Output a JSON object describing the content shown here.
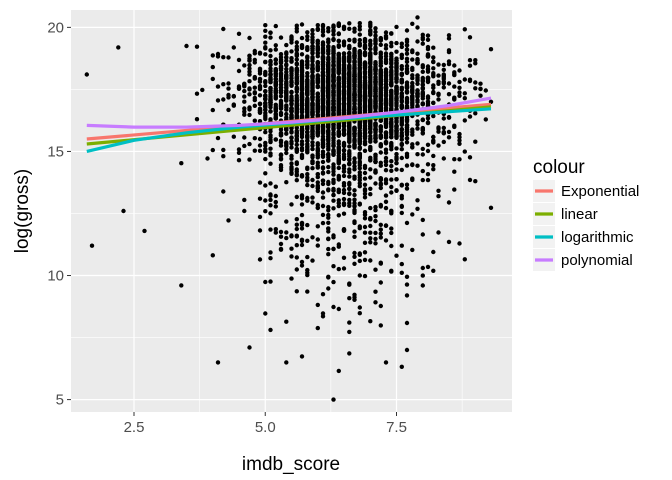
{
  "chart_data": {
    "type": "scatter",
    "xlabel": "imdb_score",
    "ylabel": "log(gross)",
    "xlim": [
      1.3,
      9.7
    ],
    "ylim": [
      4.5,
      20.7
    ],
    "x_ticks": [
      2.5,
      5.0,
      7.5
    ],
    "x_tick_labels": [
      "2.5",
      "5.0",
      "7.5"
    ],
    "y_ticks": [
      5,
      10,
      15,
      20
    ],
    "y_tick_labels": [
      "5",
      "10",
      "15",
      "20"
    ],
    "grid": true,
    "legend": {
      "title": "colour",
      "placement": "right",
      "entries": [
        {
          "label": "Exponential",
          "color": "#F8766D"
        },
        {
          "label": "linear",
          "color": "#7CAE00"
        },
        {
          "label": "logarithmic",
          "color": "#00BFC4"
        },
        {
          "label": "polynomial",
          "color": "#C77CFF"
        }
      ]
    },
    "points": {
      "color": "#000000",
      "count": 3800,
      "main_cluster": {
        "x_center": 6.5,
        "x_sd": 0.9,
        "y_center": 17.3,
        "y_sd": 1.2
      },
      "examples": [
        {
          "x": 1.6,
          "y": 18.1
        },
        {
          "x": 1.7,
          "y": 11.2
        },
        {
          "x": 2.3,
          "y": 12.6
        },
        {
          "x": 2.7,
          "y": 11.8
        },
        {
          "x": 3.4,
          "y": 9.6
        },
        {
          "x": 4.1,
          "y": 6.5
        },
        {
          "x": 4.7,
          "y": 7.1
        },
        {
          "x": 5.4,
          "y": 6.5
        },
        {
          "x": 6.3,
          "y": 5.0
        },
        {
          "x": 7.3,
          "y": 6.5
        },
        {
          "x": 7.7,
          "y": 7.0
        },
        {
          "x": 9.3,
          "y": 17.0
        },
        {
          "x": 8.9,
          "y": 19.6
        },
        {
          "x": 7.9,
          "y": 20.4
        }
      ]
    },
    "series": [
      {
        "name": "Exponential",
        "color": "#F8766D",
        "x": [
          1.6,
          9.3
        ],
        "y": [
          15.5,
          16.9
        ]
      },
      {
        "name": "linear",
        "color": "#7CAE00",
        "x": [
          1.6,
          9.3
        ],
        "y": [
          15.3,
          16.8
        ]
      },
      {
        "name": "logarithmic",
        "color": "#00BFC4",
        "x": [
          1.6,
          2.5,
          3.5,
          4.5,
          5.5,
          6.5,
          7.5,
          8.5,
          9.3
        ],
        "y": [
          15.0,
          15.45,
          15.75,
          15.98,
          16.15,
          16.32,
          16.47,
          16.6,
          16.72
        ]
      },
      {
        "name": "polynomial",
        "color": "#C77CFF",
        "x": [
          1.6,
          2.5,
          3.5,
          4.5,
          5.5,
          6.5,
          7.5,
          8.5,
          9.3
        ],
        "y": [
          16.05,
          15.98,
          15.98,
          16.05,
          16.18,
          16.35,
          16.58,
          16.85,
          17.15
        ]
      }
    ]
  }
}
